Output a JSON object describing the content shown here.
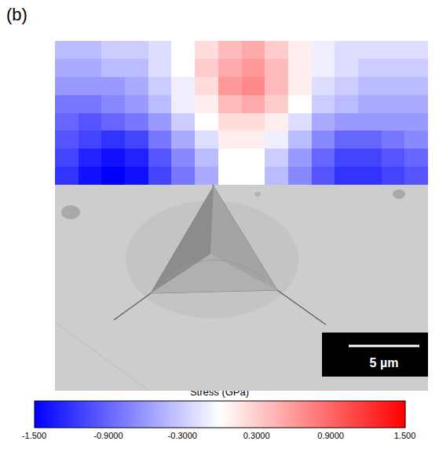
{
  "chart_data": {
    "type": "heatmap",
    "panel_label": "(b)",
    "tick_labels": false,
    "z": [
      [
        -0.4,
        -0.4,
        -0.3,
        -0.3,
        -0.2,
        0.0,
        0.2,
        0.4,
        0.5,
        0.3,
        0.1,
        -0.1,
        -0.2,
        -0.2,
        -0.2,
        -0.2
      ],
      [
        -0.5,
        -0.5,
        -0.4,
        -0.4,
        -0.2,
        0.0,
        0.3,
        0.5,
        0.6,
        0.4,
        0.1,
        -0.1,
        -0.2,
        -0.3,
        -0.3,
        -0.3
      ],
      [
        -0.6,
        -0.6,
        -0.6,
        -0.5,
        -0.3,
        -0.1,
        0.2,
        0.6,
        0.7,
        0.4,
        0.1,
        -0.2,
        -0.3,
        -0.4,
        -0.4,
        -0.4
      ],
      [
        -0.8,
        -0.8,
        -0.7,
        -0.6,
        -0.4,
        -0.1,
        0.1,
        0.4,
        0.5,
        0.3,
        0.0,
        -0.3,
        -0.4,
        -0.5,
        -0.5,
        -0.5
      ],
      [
        -0.9,
        -1.0,
        -0.9,
        -0.8,
        -0.6,
        -0.3,
        0.0,
        0.2,
        0.2,
        0.1,
        -0.2,
        -0.5,
        -0.6,
        -0.6,
        -0.6,
        -0.6
      ],
      [
        -1.0,
        -1.1,
        -1.2,
        -1.1,
        -0.8,
        -0.5,
        -0.2,
        0.1,
        0.1,
        -0.1,
        -0.4,
        -0.7,
        -0.9,
        -0.9,
        -0.8,
        -0.7
      ],
      [
        -1.1,
        -1.3,
        -1.4,
        -1.3,
        -1.0,
        -0.7,
        -0.4,
        0.0,
        0.0,
        -0.3,
        -0.6,
        -0.9,
        -1.1,
        -1.1,
        -1.0,
        -0.9
      ],
      [
        -1.2,
        -1.4,
        -1.5,
        -1.4,
        -1.1,
        -0.8,
        -0.5,
        0.0,
        0.0,
        -0.4,
        -0.7,
        -1.0,
        -1.2,
        -1.2,
        -1.1,
        -1.0
      ]
    ],
    "colorbar": {
      "title": "Stress (GPa)",
      "range": [
        -1.5,
        1.5
      ],
      "ticks": [
        {
          "value": -1.5,
          "label": "-1.500"
        },
        {
          "value": -0.9,
          "label": "-0.9000"
        },
        {
          "value": -0.3,
          "label": "-0.3000"
        },
        {
          "value": 0.3,
          "label": "0.3000"
        },
        {
          "value": 0.9,
          "label": "0.9000"
        },
        {
          "value": 1.5,
          "label": "1.500"
        }
      ]
    },
    "scale_bar": {
      "label": "5 µm"
    }
  }
}
